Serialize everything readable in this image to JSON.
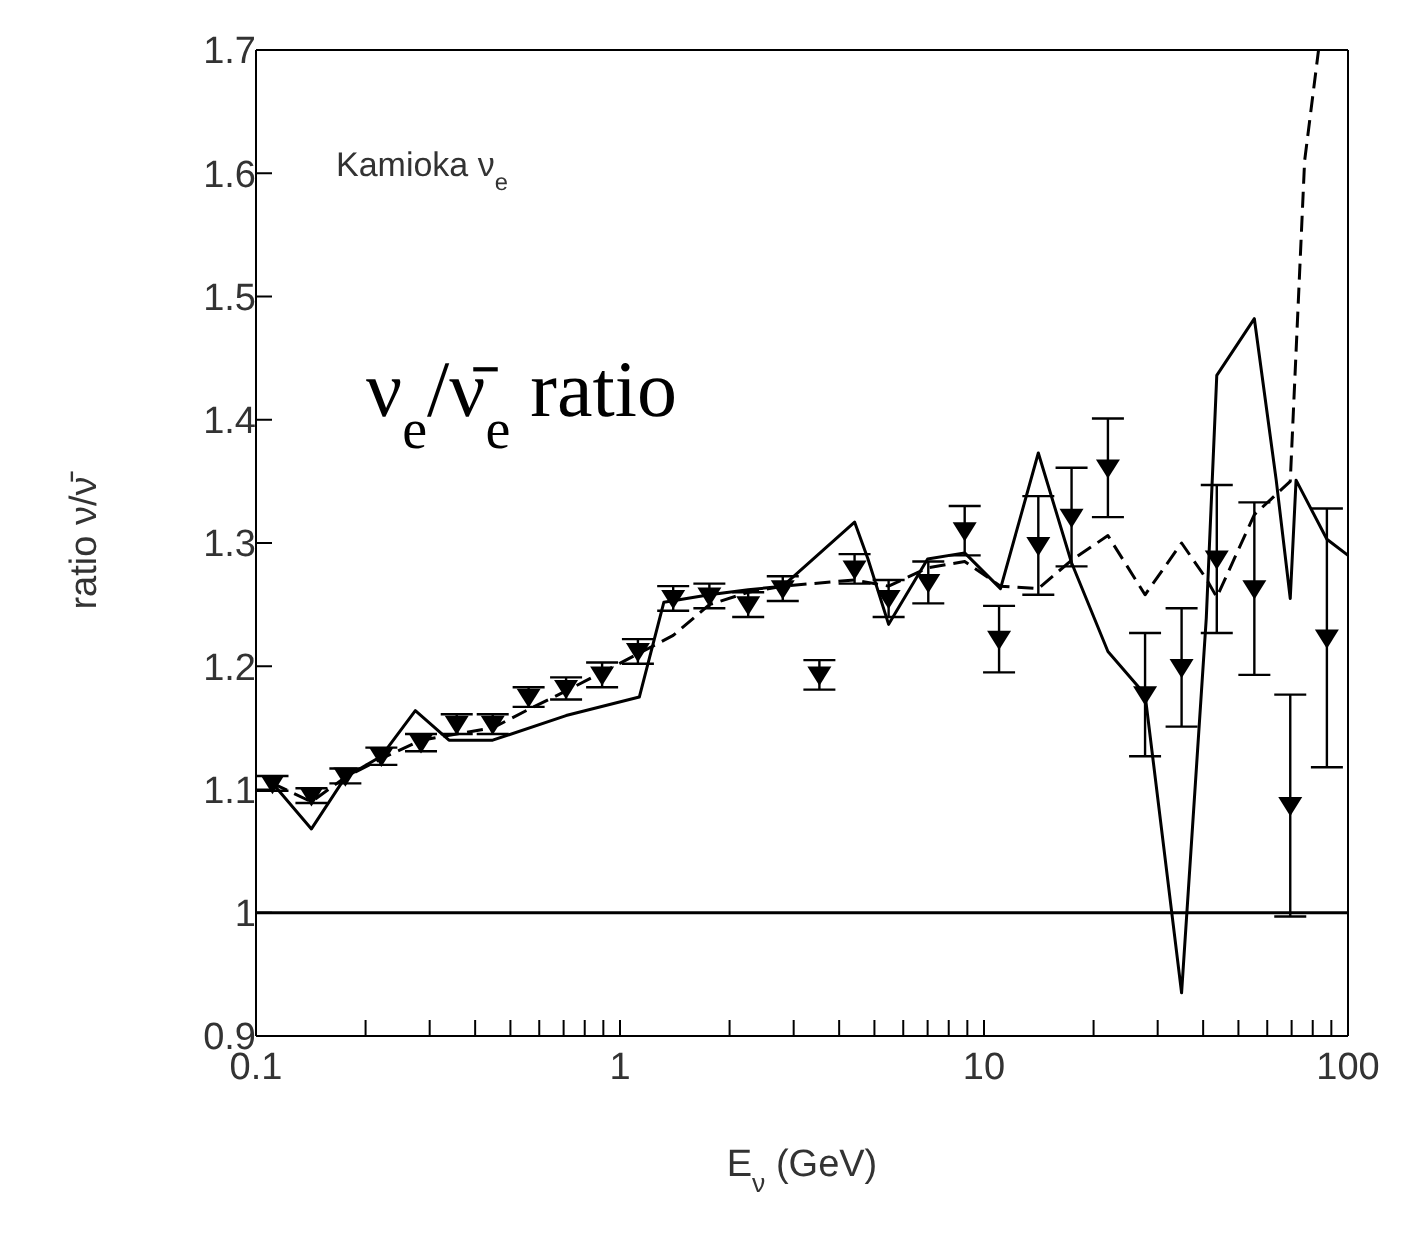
{
  "chart_data": {
    "type": "line",
    "xlabel": "E$_{ν}$   (GeV)",
    "ylabel": "ratio   ν/ν̄",
    "annotations": [
      "Kamioka ν$_{e}$",
      "ν$_{e}$/ν̄$_{e}$ ratio"
    ],
    "log": "x",
    "xlim": [
      0.1,
      100
    ],
    "xticks": [
      0.1,
      {
        "value": 0.2,
        "label": null
      },
      {
        "value": 0.3,
        "label": null
      },
      {
        "value": 0.4,
        "label": null
      },
      {
        "value": 0.5,
        "label": null
      },
      {
        "value": 0.6,
        "label": null
      },
      {
        "value": 0.7,
        "label": null
      },
      {
        "value": 0.8,
        "label": null
      },
      {
        "value": 0.9,
        "label": null
      },
      1,
      {
        "value": 2,
        "label": null
      },
      {
        "value": 3,
        "label": null
      },
      {
        "value": 4,
        "label": null
      },
      {
        "value": 5,
        "label": null
      },
      {
        "value": 6,
        "label": null
      },
      {
        "value": 7,
        "label": null
      },
      {
        "value": 8,
        "label": null
      },
      {
        "value": 9,
        "label": null
      },
      10,
      {
        "value": 20,
        "label": null
      },
      {
        "value": 30,
        "label": null
      },
      {
        "value": 40,
        "label": null
      },
      {
        "value": 50,
        "label": null
      },
      {
        "value": 60,
        "label": null
      },
      {
        "value": 70,
        "label": null
      },
      {
        "value": 80,
        "label": null
      },
      {
        "value": 90,
        "label": null
      },
      100
    ],
    "ylim": [
      0.9,
      1.7
    ],
    "yticks": [
      0.9,
      1,
      1.1,
      1.2,
      1.3,
      1.4,
      1.5,
      1.6,
      1.7
    ],
    "ref_lines": [
      {
        "axis": "y",
        "value": 1,
        "color": "#000000",
        "line_style": "solid"
      }
    ],
    "series": [
      {
        "line_style": "solid",
        "marker": "none",
        "color": "#000000",
        "x": [
          0.111,
          0.142,
          0.176,
          0.221,
          0.274,
          0.339,
          0.447,
          0.711,
          1.13,
          1.32,
          1.76,
          2.25,
          2.8,
          4.41,
          4.8,
          5.47,
          7.0,
          8.85,
          11.1,
          14.1,
          17.4,
          21.9,
          27.7,
          34.9,
          40.8,
          43.6,
          55.3,
          63.5,
          69.4,
          72,
          87.5,
          100
        ],
        "values": [
          1.105,
          1.068,
          1.11,
          1.127,
          1.164,
          1.14,
          1.14,
          1.16,
          1.175,
          1.252,
          1.258,
          1.262,
          1.265,
          1.317,
          1.287,
          1.234,
          1.287,
          1.292,
          1.263,
          1.373,
          1.284,
          1.212,
          1.177,
          0.935,
          1.239,
          1.436,
          1.482,
          1.351,
          1.255,
          1.351,
          1.303,
          1.29
        ]
      },
      {
        "line_style": "dashed",
        "marker": "none",
        "color": "#000000",
        "x": [
          0.111,
          0.142,
          0.176,
          0.221,
          0.284,
          0.356,
          0.447,
          0.561,
          0.711,
          0.893,
          1.12,
          1.4,
          1.76,
          2.25,
          2.8,
          4.41,
          5.47,
          7.03,
          8.85,
          11.1,
          14.1,
          17.4,
          21.9,
          27.7,
          34.9,
          40.8,
          43.6,
          55.3,
          69.4,
          76,
          83
        ],
        "values": [
          1.105,
          1.09,
          1.11,
          1.125,
          1.14,
          1.145,
          1.15,
          1.165,
          1.18,
          1.195,
          1.21,
          1.225,
          1.25,
          1.26,
          1.265,
          1.27,
          1.265,
          1.28,
          1.285,
          1.265,
          1.263,
          1.286,
          1.306,
          1.258,
          1.3,
          1.271,
          1.256,
          1.323,
          1.35,
          1.61,
          1.7
        ]
      },
      {
        "type": "scatter",
        "marker": "triangle",
        "color": "#000000",
        "x": [
          0.111,
          0.142,
          0.176,
          0.221,
          0.284,
          0.356,
          0.447,
          0.561,
          0.711,
          0.893,
          1.12,
          1.4,
          1.76,
          2.25,
          2.8,
          3.53,
          4.41,
          5.47,
          7.03,
          8.85,
          11.0,
          14.1,
          17.4,
          21.9,
          27.7,
          34.9,
          43.6,
          55.3,
          69.4,
          87.5
        ],
        "values": [
          1.105,
          1.095,
          1.111,
          1.127,
          1.138,
          1.153,
          1.153,
          1.175,
          1.182,
          1.193,
          1.212,
          1.255,
          1.257,
          1.25,
          1.263,
          1.193,
          1.279,
          1.255,
          1.268,
          1.31,
          1.222,
          1.298,
          1.321,
          1.361,
          1.177,
          1.199,
          1.287,
          1.263,
          1.087,
          1.223
        ],
        "errors": [
          0.006,
          0.006,
          0.006,
          0.007,
          0.007,
          0.008,
          0.008,
          0.008,
          0.009,
          0.01,
          0.01,
          0.01,
          0.01,
          0.01,
          0.01,
          0.012,
          0.012,
          0.015,
          0.017,
          0.02,
          0.027,
          0.04,
          0.04,
          0.04,
          0.05,
          0.048,
          0.06,
          0.07,
          0.09,
          0.105
        ]
      }
    ]
  }
}
